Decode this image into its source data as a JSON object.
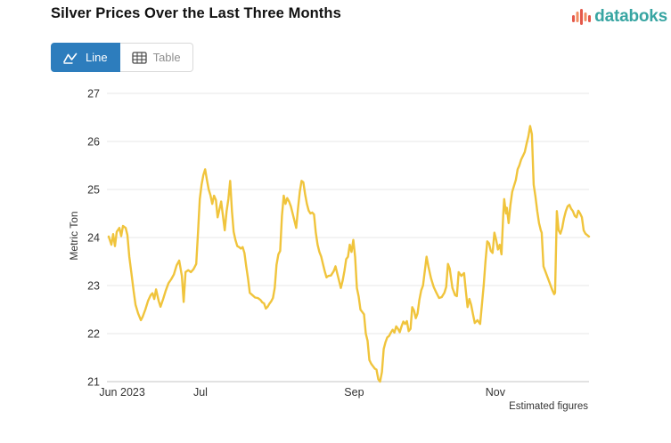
{
  "header": {
    "title": "Silver Prices Over the Last Three Months"
  },
  "brand": {
    "name": "databoks",
    "text_color": "#38a5a2",
    "icon_bar_colors": [
      "#e4584a",
      "#f28e63",
      "#e4584a",
      "#f28e63",
      "#e4584a"
    ]
  },
  "toolbar": {
    "line_label": "Line",
    "table_label": "Table",
    "active_view": "Line",
    "active_color": "#2d7dbd"
  },
  "chart_data": {
    "type": "line",
    "title": "Silver Prices Over the Last Three Months",
    "xlabel": "",
    "ylabel": "Metric Ton",
    "ylim": [
      21,
      27
    ],
    "y_ticks": [
      21,
      22,
      23,
      24,
      25,
      26,
      27
    ],
    "x_ticks": [
      {
        "label": "Jun 2023",
        "f": 0.028
      },
      {
        "label": "Jul",
        "f": 0.191
      },
      {
        "label": "Sep",
        "f": 0.511
      },
      {
        "label": "Nov",
        "f": 0.805
      }
    ],
    "grid": true,
    "legend_position": "none",
    "note": "Estimated figures",
    "colors": {
      "line": "#F0C43C",
      "grid": "#e7e7e7",
      "axis": "#c6c6c6",
      "tick_label": "#333333"
    },
    "series": [
      {
        "name": "Silver price",
        "color": "#F0C43C",
        "points": [
          [
            0,
            24.02
          ],
          [
            0.0056,
            23.85
          ],
          [
            0.0093,
            24.07
          ],
          [
            0.013,
            23.82
          ],
          [
            0.0167,
            24.12
          ],
          [
            0.0223,
            24.2
          ],
          [
            0.026,
            24.03
          ],
          [
            0.0297,
            24.24
          ],
          [
            0.0353,
            24.2
          ],
          [
            0.039,
            24.05
          ],
          [
            0.0428,
            23.6
          ],
          [
            0.0483,
            23.18
          ],
          [
            0.052,
            22.88
          ],
          [
            0.0558,
            22.6
          ],
          [
            0.0613,
            22.42
          ],
          [
            0.0669,
            22.28
          ],
          [
            0.0706,
            22.35
          ],
          [
            0.0762,
            22.5
          ],
          [
            0.0818,
            22.68
          ],
          [
            0.0874,
            22.8
          ],
          [
            0.0911,
            22.84
          ],
          [
            0.0948,
            22.72
          ],
          [
            0.0985,
            22.92
          ],
          [
            0.1041,
            22.68
          ],
          [
            0.1078,
            22.56
          ],
          [
            0.1134,
            22.72
          ],
          [
            0.119,
            22.9
          ],
          [
            0.1245,
            23.05
          ],
          [
            0.1301,
            23.13
          ],
          [
            0.1357,
            23.23
          ],
          [
            0.1413,
            23.42
          ],
          [
            0.1468,
            23.52
          ],
          [
            0.1524,
            23.2
          ],
          [
            0.1561,
            22.66
          ],
          [
            0.1599,
            23.28
          ],
          [
            0.1654,
            23.32
          ],
          [
            0.171,
            23.28
          ],
          [
            0.1766,
            23.34
          ],
          [
            0.1822,
            23.45
          ],
          [
            0.1859,
            24.1
          ],
          [
            0.1896,
            24.8
          ],
          [
            0.1933,
            25.1
          ],
          [
            0.197,
            25.3
          ],
          [
            0.2007,
            25.42
          ],
          [
            0.2045,
            25.2
          ],
          [
            0.2082,
            25.0
          ],
          [
            0.2119,
            24.88
          ],
          [
            0.2156,
            24.7
          ],
          [
            0.2193,
            24.87
          ],
          [
            0.2231,
            24.78
          ],
          [
            0.2268,
            24.42
          ],
          [
            0.2305,
            24.58
          ],
          [
            0.2342,
            24.75
          ],
          [
            0.2379,
            24.45
          ],
          [
            0.2416,
            24.15
          ],
          [
            0.2454,
            24.55
          ],
          [
            0.2491,
            24.8
          ],
          [
            0.2528,
            25.18
          ],
          [
            0.2565,
            24.55
          ],
          [
            0.2602,
            24.12
          ],
          [
            0.2639,
            23.95
          ],
          [
            0.2677,
            23.82
          ],
          [
            0.2714,
            23.8
          ],
          [
            0.2751,
            23.77
          ],
          [
            0.2788,
            23.8
          ],
          [
            0.2825,
            23.68
          ],
          [
            0.2862,
            23.4
          ],
          [
            0.29,
            23.15
          ],
          [
            0.2937,
            22.85
          ],
          [
            0.2993,
            22.8
          ],
          [
            0.3048,
            22.75
          ],
          [
            0.3104,
            22.74
          ],
          [
            0.316,
            22.7
          ],
          [
            0.3197,
            22.65
          ],
          [
            0.3234,
            22.63
          ],
          [
            0.3271,
            22.52
          ],
          [
            0.3309,
            22.56
          ],
          [
            0.3346,
            22.62
          ],
          [
            0.3383,
            22.67
          ],
          [
            0.342,
            22.74
          ],
          [
            0.3457,
            22.95
          ],
          [
            0.3494,
            23.43
          ],
          [
            0.3532,
            23.65
          ],
          [
            0.3569,
            23.72
          ],
          [
            0.3606,
            24.45
          ],
          [
            0.3643,
            24.87
          ],
          [
            0.368,
            24.7
          ],
          [
            0.3717,
            24.82
          ],
          [
            0.3755,
            24.75
          ],
          [
            0.3792,
            24.65
          ],
          [
            0.3829,
            24.5
          ],
          [
            0.3866,
            24.35
          ],
          [
            0.3903,
            24.2
          ],
          [
            0.394,
            24.6
          ],
          [
            0.3978,
            24.95
          ],
          [
            0.4015,
            25.18
          ],
          [
            0.4052,
            25.15
          ],
          [
            0.4089,
            24.9
          ],
          [
            0.4126,
            24.7
          ],
          [
            0.4163,
            24.56
          ],
          [
            0.4201,
            24.5
          ],
          [
            0.4238,
            24.52
          ],
          [
            0.4275,
            24.48
          ],
          [
            0.4312,
            24.1
          ],
          [
            0.4349,
            23.85
          ],
          [
            0.4386,
            23.7
          ],
          [
            0.4424,
            23.6
          ],
          [
            0.4461,
            23.45
          ],
          [
            0.4498,
            23.3
          ],
          [
            0.4535,
            23.17
          ],
          [
            0.4572,
            23.2
          ],
          [
            0.4628,
            23.21
          ],
          [
            0.4684,
            23.3
          ],
          [
            0.4721,
            23.4
          ],
          [
            0.4758,
            23.25
          ],
          [
            0.4796,
            23.1
          ],
          [
            0.4833,
            22.95
          ],
          [
            0.487,
            23.1
          ],
          [
            0.4907,
            23.3
          ],
          [
            0.4944,
            23.55
          ],
          [
            0.4981,
            23.6
          ],
          [
            0.5019,
            23.85
          ],
          [
            0.5056,
            23.7
          ],
          [
            0.5093,
            23.95
          ],
          [
            0.513,
            23.6
          ],
          [
            0.5167,
            22.95
          ],
          [
            0.5204,
            22.77
          ],
          [
            0.5242,
            22.5
          ],
          [
            0.5279,
            22.45
          ],
          [
            0.5316,
            22.4
          ],
          [
            0.5353,
            22.0
          ],
          [
            0.539,
            21.85
          ],
          [
            0.5427,
            21.45
          ],
          [
            0.5465,
            21.37
          ],
          [
            0.5502,
            21.32
          ],
          [
            0.5539,
            21.27
          ],
          [
            0.5576,
            21.25
          ],
          [
            0.5613,
            21.05
          ],
          [
            0.565,
            21.0
          ],
          [
            0.5688,
            21.2
          ],
          [
            0.5725,
            21.68
          ],
          [
            0.5762,
            21.82
          ],
          [
            0.5799,
            21.92
          ],
          [
            0.5836,
            21.95
          ],
          [
            0.5874,
            22.02
          ],
          [
            0.5911,
            22.08
          ],
          [
            0.5948,
            22.02
          ],
          [
            0.5985,
            22.15
          ],
          [
            0.6022,
            22.1
          ],
          [
            0.6059,
            22.03
          ],
          [
            0.6097,
            22.15
          ],
          [
            0.6134,
            22.25
          ],
          [
            0.6171,
            22.2
          ],
          [
            0.6208,
            22.26
          ],
          [
            0.6245,
            22.05
          ],
          [
            0.6283,
            22.1
          ],
          [
            0.632,
            22.55
          ],
          [
            0.6357,
            22.48
          ],
          [
            0.6394,
            22.32
          ],
          [
            0.6431,
            22.42
          ],
          [
            0.6468,
            22.7
          ],
          [
            0.6506,
            22.9
          ],
          [
            0.6543,
            23.0
          ],
          [
            0.658,
            23.3
          ],
          [
            0.6617,
            23.6
          ],
          [
            0.6654,
            23.4
          ],
          [
            0.671,
            23.15
          ],
          [
            0.6766,
            22.97
          ],
          [
            0.6822,
            22.85
          ],
          [
            0.6877,
            22.74
          ],
          [
            0.6933,
            22.76
          ],
          [
            0.6989,
            22.85
          ],
          [
            0.7026,
            22.97
          ],
          [
            0.7063,
            23.45
          ],
          [
            0.7101,
            23.35
          ],
          [
            0.7156,
            22.95
          ],
          [
            0.7212,
            22.8
          ],
          [
            0.7249,
            22.78
          ],
          [
            0.7286,
            23.28
          ],
          [
            0.7342,
            23.2
          ],
          [
            0.7398,
            23.26
          ],
          [
            0.7435,
            22.9
          ],
          [
            0.7472,
            22.55
          ],
          [
            0.7509,
            22.72
          ],
          [
            0.7546,
            22.6
          ],
          [
            0.7584,
            22.4
          ],
          [
            0.7621,
            22.22
          ],
          [
            0.7677,
            22.28
          ],
          [
            0.7732,
            22.2
          ],
          [
            0.777,
            22.6
          ],
          [
            0.7807,
            23.0
          ],
          [
            0.7844,
            23.5
          ],
          [
            0.7881,
            23.92
          ],
          [
            0.7918,
            23.88
          ],
          [
            0.7955,
            23.72
          ],
          [
            0.7993,
            23.68
          ],
          [
            0.803,
            24.1
          ],
          [
            0.8067,
            23.95
          ],
          [
            0.8104,
            23.75
          ],
          [
            0.8141,
            23.85
          ],
          [
            0.8178,
            23.65
          ],
          [
            0.8216,
            24.5
          ],
          [
            0.8234,
            24.8
          ],
          [
            0.8271,
            24.5
          ],
          [
            0.829,
            24.62
          ],
          [
            0.8327,
            24.3
          ],
          [
            0.8364,
            24.68
          ],
          [
            0.8401,
            24.95
          ],
          [
            0.8439,
            25.08
          ],
          [
            0.8476,
            25.2
          ],
          [
            0.8513,
            25.42
          ],
          [
            0.855,
            25.5
          ],
          [
            0.8587,
            25.62
          ],
          [
            0.8625,
            25.7
          ],
          [
            0.8662,
            25.78
          ],
          [
            0.8699,
            25.95
          ],
          [
            0.8736,
            26.1
          ],
          [
            0.8773,
            26.32
          ],
          [
            0.881,
            26.15
          ],
          [
            0.8848,
            25.1
          ],
          [
            0.8885,
            24.85
          ],
          [
            0.8922,
            24.55
          ],
          [
            0.8959,
            24.3
          ],
          [
            0.8996,
            24.15
          ],
          [
            0.9015,
            24.1
          ],
          [
            0.9052,
            23.4
          ],
          [
            0.9089,
            23.3
          ],
          [
            0.9126,
            23.2
          ],
          [
            0.9164,
            23.1
          ],
          [
            0.9201,
            23.0
          ],
          [
            0.9238,
            22.9
          ],
          [
            0.9275,
            22.82
          ],
          [
            0.9294,
            22.85
          ],
          [
            0.9331,
            24.55
          ],
          [
            0.9368,
            24.15
          ],
          [
            0.9405,
            24.08
          ],
          [
            0.9442,
            24.2
          ],
          [
            0.9479,
            24.4
          ],
          [
            0.9517,
            24.55
          ],
          [
            0.9554,
            24.65
          ],
          [
            0.9591,
            24.68
          ],
          [
            0.9628,
            24.6
          ],
          [
            0.9665,
            24.55
          ],
          [
            0.9703,
            24.45
          ],
          [
            0.974,
            24.42
          ],
          [
            0.9777,
            24.56
          ],
          [
            0.9814,
            24.5
          ],
          [
            0.9851,
            24.42
          ],
          [
            0.9888,
            24.15
          ],
          [
            0.9926,
            24.08
          ],
          [
            0.9963,
            24.05
          ],
          [
            1,
            24.02
          ]
        ]
      }
    ]
  }
}
